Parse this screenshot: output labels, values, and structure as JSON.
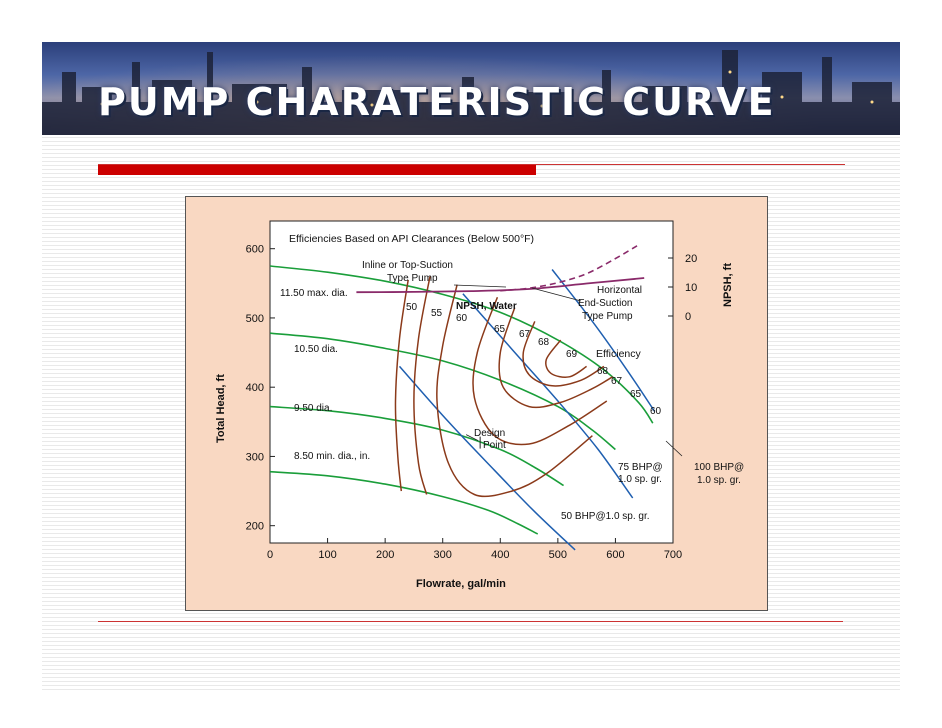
{
  "slide": {
    "title": "PUMP CHARATERISTIC CURVE"
  },
  "colors": {
    "accent_red": "#cc0000",
    "head_curve": "#1a9e3a",
    "efficiency_curve": "#8b3a1a",
    "bhp_curve": "#1f5fb0",
    "npsh_curve": "#8a2a6a",
    "chart_bg": "#f9d8c2"
  },
  "chart_data": {
    "type": "line",
    "title": "Efficiencies Based on API Clearances (Below 500°F)",
    "xlabel": "Flowrate, gal/min",
    "ylabel": "Total Head, ft",
    "y2label": "NPSH, ft",
    "xlim": [
      0,
      700
    ],
    "ylim": [
      175,
      640
    ],
    "x_ticks": [
      0,
      100,
      200,
      300,
      400,
      500,
      600,
      700
    ],
    "y_ticks": [
      200,
      300,
      400,
      500,
      600
    ],
    "y2_ticks": [
      0,
      10,
      20
    ],
    "grid": false,
    "head_curves": [
      {
        "name": "11.50 max. dia.",
        "x": [
          0,
          100,
          200,
          300,
          400,
          500,
          580,
          640,
          665
        ],
        "y": [
          575,
          566,
          553,
          534,
          508,
          468,
          425,
          378,
          348
        ]
      },
      {
        "name": "10.50 dia.",
        "x": [
          0,
          100,
          200,
          300,
          400,
          500,
          560,
          600
        ],
        "y": [
          478,
          470,
          456,
          438,
          410,
          372,
          338,
          310
        ]
      },
      {
        "name": "9.50 dia.",
        "x": [
          0,
          100,
          200,
          300,
          400,
          460,
          510
        ],
        "y": [
          372,
          366,
          355,
          338,
          310,
          284,
          258
        ]
      },
      {
        "name": "8.50 min. dia., in.",
        "x": [
          0,
          100,
          200,
          300,
          380,
          430,
          465
        ],
        "y": [
          278,
          272,
          260,
          242,
          222,
          203,
          188
        ]
      }
    ],
    "efficiency_labels": [
      "50",
      "55",
      "60",
      "65",
      "67",
      "68",
      "69",
      "68",
      "67",
      "65",
      "60"
    ],
    "efficiency_label_text": "Efficiency",
    "bhp_curves": [
      {
        "name": "50 BHP@1.0 sp. gr.",
        "x": [
          225,
          310,
          390,
          460,
          530
        ],
        "y": [
          430,
          350,
          280,
          220,
          165
        ]
      },
      {
        "name": "75 BHP@ 1.0 sp. gr.",
        "x": [
          335,
          420,
          500,
          570,
          630
        ],
        "y": [
          535,
          455,
          380,
          310,
          240
        ]
      },
      {
        "name": "100 BHP@ 1.0 sp. gr.",
        "x": [
          490,
          560,
          620,
          668
        ],
        "y": [
          570,
          495,
          425,
          365
        ]
      }
    ],
    "bhp_label_75_line1": "75 BHP@",
    "bhp_label_75_line2": "1.0 sp. gr.",
    "bhp_label_100_line1": "100 BHP@",
    "bhp_label_100_line2": "1.0 sp. gr.",
    "npsh": {
      "name": "NPSH, Water",
      "x": [
        150,
        250,
        350,
        450,
        550,
        650
      ],
      "npsh_ft": [
        8.2,
        8.3,
        8.6,
        9.3,
        11.2,
        13.1
      ]
    },
    "npsh_inline": {
      "x": [
        400,
        450,
        500,
        550,
        600,
        640
      ],
      "npsh_ft": [
        8.7,
        9.6,
        11.5,
        14.6,
        19.8,
        24.5
      ]
    },
    "annotations": {
      "inline_line1": "Inline or Top-Suction",
      "inline_line2": "Type Pump",
      "horizontal_line1": "Horizontal",
      "horizontal_line2": "End-Suction",
      "horizontal_line3": "Type Pump",
      "design_line1": "Design",
      "design_line2": "Point"
    }
  }
}
